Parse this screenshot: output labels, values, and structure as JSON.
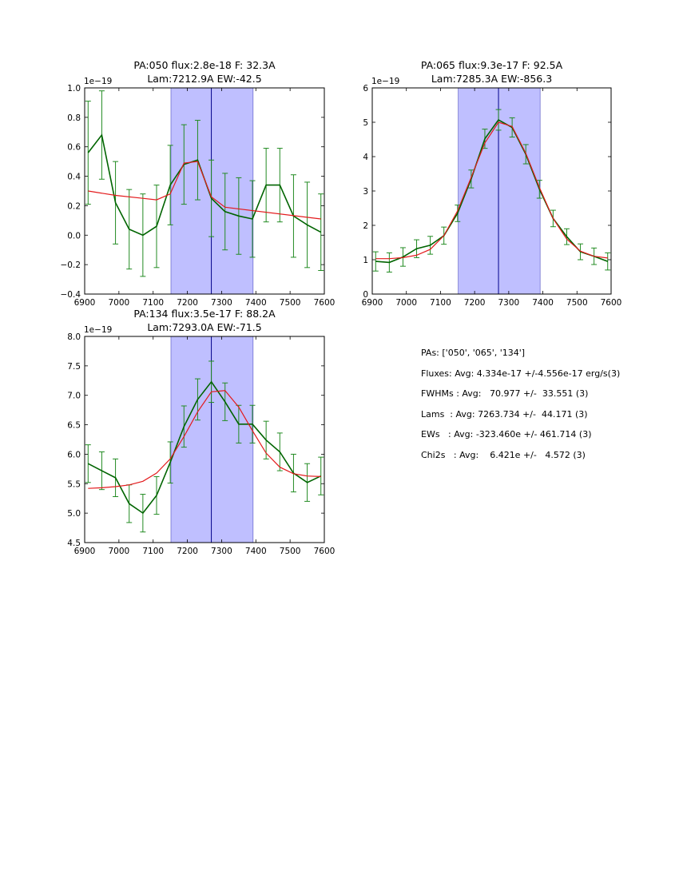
{
  "chart_data": [
    {
      "type": "line",
      "title_line1": "PA:050 flux:2.8e-18 F: 32.3A",
      "title_line2": "Lam:7212.9A EW:-42.5",
      "offset_label": "1e−19",
      "xlim": [
        6900,
        7600
      ],
      "ylim": [
        -0.4,
        1.0
      ],
      "xticks": [
        6900,
        7000,
        7100,
        7200,
        7300,
        7400,
        7500,
        7600
      ],
      "yticks": [
        -0.4,
        -0.2,
        0.0,
        0.2,
        0.4,
        0.6,
        0.8,
        1.0
      ],
      "ytick_labels": [
        "−0.4",
        "−0.2",
        "0.0",
        "0.2",
        "0.4",
        "0.6",
        "0.8",
        "1.0"
      ],
      "band": [
        7152,
        7392
      ],
      "center_line": 7270,
      "data_color": "#006400",
      "errbar_color": "#228B22",
      "fit_color": "#e31a1c",
      "band_color": "#bfbfff",
      "center_color": "#00008b",
      "x": [
        6910,
        6950,
        6990,
        7030,
        7070,
        7110,
        7150,
        7190,
        7230,
        7270,
        7310,
        7350,
        7390,
        7430,
        7470,
        7510,
        7550,
        7590
      ],
      "y": [
        0.56,
        0.68,
        0.22,
        0.04,
        0.0,
        0.06,
        0.34,
        0.48,
        0.51,
        0.25,
        0.16,
        0.13,
        0.11,
        0.34,
        0.34,
        0.13,
        0.07,
        0.02
      ],
      "yerr": [
        0.35,
        0.3,
        0.28,
        0.27,
        0.28,
        0.28,
        0.27,
        0.27,
        0.27,
        0.26,
        0.26,
        0.26,
        0.26,
        0.25,
        0.25,
        0.28,
        0.29,
        0.26
      ],
      "fit_x": [
        6910,
        6990,
        7070,
        7110,
        7150,
        7190,
        7230,
        7270,
        7310,
        7590
      ],
      "fit_y": [
        0.3,
        0.27,
        0.25,
        0.24,
        0.28,
        0.49,
        0.5,
        0.26,
        0.19,
        0.11
      ]
    },
    {
      "type": "line",
      "title_line1": "PA:065 flux:9.3e-17 F: 92.5A",
      "title_line2": "Lam:7285.3A EW:-856.3",
      "offset_label": "1e−19",
      "xlim": [
        6900,
        7600
      ],
      "ylim": [
        0,
        6
      ],
      "xticks": [
        6900,
        7000,
        7100,
        7200,
        7300,
        7400,
        7500,
        7600
      ],
      "yticks": [
        0,
        1,
        2,
        3,
        4,
        5,
        6
      ],
      "ytick_labels": [
        "0",
        "1",
        "2",
        "3",
        "4",
        "5",
        "6"
      ],
      "band": [
        7152,
        7392
      ],
      "center_line": 7270,
      "data_color": "#006400",
      "errbar_color": "#228B22",
      "fit_color": "#e31a1c",
      "band_color": "#bfbfff",
      "center_color": "#00008b",
      "x": [
        6910,
        6950,
        6990,
        7030,
        7070,
        7110,
        7150,
        7190,
        7230,
        7270,
        7310,
        7350,
        7390,
        7430,
        7470,
        7510,
        7550,
        7590
      ],
      "y": [
        0.95,
        0.92,
        1.08,
        1.32,
        1.42,
        1.7,
        2.35,
        3.35,
        4.52,
        5.07,
        4.85,
        4.07,
        3.05,
        2.2,
        1.67,
        1.23,
        1.1,
        0.95
      ],
      "yerr": [
        0.28,
        0.28,
        0.27,
        0.26,
        0.26,
        0.25,
        0.24,
        0.26,
        0.28,
        0.3,
        0.28,
        0.28,
        0.26,
        0.24,
        0.23,
        0.23,
        0.24,
        0.25
      ],
      "fit_x": [
        6910,
        6950,
        6990,
        7030,
        7070,
        7110,
        7150,
        7190,
        7230,
        7270,
        7310,
        7350,
        7390,
        7430,
        7470,
        7510,
        7550,
        7590
      ],
      "fit_y": [
        1.03,
        1.03,
        1.06,
        1.13,
        1.3,
        1.7,
        2.42,
        3.4,
        4.4,
        5.0,
        4.88,
        4.1,
        3.1,
        2.2,
        1.6,
        1.25,
        1.1,
        1.05
      ]
    },
    {
      "type": "line",
      "title_line1": "PA:134 flux:3.5e-17 F: 88.2A",
      "title_line2": "Lam:7293.0A EW:-71.5",
      "offset_label": "1e−19",
      "xlim": [
        6900,
        7600
      ],
      "ylim": [
        4.5,
        8.0
      ],
      "xticks": [
        6900,
        7000,
        7100,
        7200,
        7300,
        7400,
        7500,
        7600
      ],
      "yticks": [
        4.5,
        5.0,
        5.5,
        6.0,
        6.5,
        7.0,
        7.5,
        8.0
      ],
      "ytick_labels": [
        "4.5",
        "5.0",
        "5.5",
        "6.0",
        "6.5",
        "7.0",
        "7.5",
        "8.0"
      ],
      "band": [
        7152,
        7392
      ],
      "center_line": 7270,
      "data_color": "#006400",
      "errbar_color": "#228B22",
      "fit_color": "#e31a1c",
      "band_color": "#bfbfff",
      "center_color": "#00008b",
      "x": [
        6910,
        6950,
        6990,
        7030,
        7070,
        7110,
        7150,
        7190,
        7230,
        7270,
        7310,
        7350,
        7390,
        7430,
        7470,
        7510,
        7550,
        7590
      ],
      "y": [
        5.84,
        5.72,
        5.6,
        5.16,
        5.0,
        5.3,
        5.86,
        6.47,
        6.93,
        7.23,
        6.89,
        6.51,
        6.51,
        6.24,
        6.04,
        5.68,
        5.52,
        5.63
      ],
      "yerr": [
        0.32,
        0.32,
        0.32,
        0.32,
        0.32,
        0.32,
        0.35,
        0.35,
        0.35,
        0.35,
        0.32,
        0.32,
        0.32,
        0.32,
        0.32,
        0.32,
        0.32,
        0.32
      ],
      "fit_x": [
        6910,
        6950,
        6990,
        7030,
        7070,
        7110,
        7150,
        7190,
        7230,
        7270,
        7310,
        7350,
        7390,
        7430,
        7470,
        7510,
        7550,
        7590
      ],
      "fit_y": [
        5.42,
        5.43,
        5.45,
        5.48,
        5.54,
        5.68,
        5.92,
        6.3,
        6.72,
        7.06,
        7.08,
        6.8,
        6.4,
        6.02,
        5.78,
        5.67,
        5.63,
        5.62
      ]
    }
  ],
  "summary": {
    "pas": "PAs: ['050', '065', '134']",
    "fluxes": "Fluxes: Avg: 4.334e-17 +/-4.556e-17 erg/s(3)",
    "fwhms": "FWHMs : Avg:   70.977 +/-  33.551 (3)",
    "lams": "Lams  : Avg: 7263.734 +/-  44.171 (3)",
    "ews": "EWs   : Avg: -323.460e +/- 461.714 (3)",
    "chi2s": "Chi2s   : Avg:    6.421e +/-   4.572 (3)"
  }
}
